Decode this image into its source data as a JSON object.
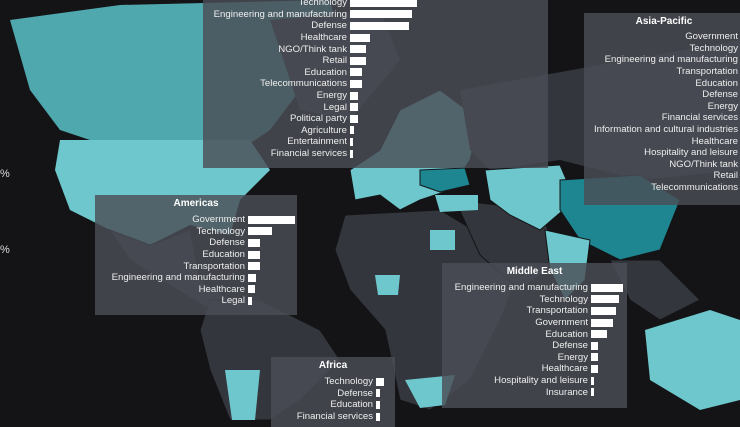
{
  "colors": {
    "background": "#141416",
    "land": "#33363c",
    "accent_light": "#6ec7cc",
    "accent_mid": "#4fa8ae",
    "accent_dark": "#1d8690",
    "panel": "#4a4e56",
    "bar": "#ffffff"
  },
  "edge_labels": [
    "%",
    "%"
  ],
  "regions": [
    {
      "id": "europe",
      "title": "",
      "items": [
        {
          "label": "Technology",
          "value": 67
        },
        {
          "label": "Engineering and manufacturing",
          "value": 62
        },
        {
          "label": "Defense",
          "value": 59
        },
        {
          "label": "Healthcare",
          "value": 20
        },
        {
          "label": "NGO/Think tank",
          "value": 16
        },
        {
          "label": "Retail",
          "value": 16
        },
        {
          "label": "Education",
          "value": 12
        },
        {
          "label": "Telecommunications",
          "value": 12
        },
        {
          "label": "Energy",
          "value": 8
        },
        {
          "label": "Legal",
          "value": 8
        },
        {
          "label": "Political party",
          "value": 8
        },
        {
          "label": "Agriculture",
          "value": 4
        },
        {
          "label": "Entertainment",
          "value": 3
        },
        {
          "label": "Financial services",
          "value": 3
        }
      ]
    },
    {
      "id": "asia-pacific",
      "title": "Asia-Pacific",
      "items": [
        {
          "label": "Government"
        },
        {
          "label": "Technology"
        },
        {
          "label": "Engineering and manufacturing"
        },
        {
          "label": "Transportation"
        },
        {
          "label": "Education"
        },
        {
          "label": "Defense"
        },
        {
          "label": "Energy"
        },
        {
          "label": "Financial services"
        },
        {
          "label": "Information and cultural industries"
        },
        {
          "label": "Healthcare"
        },
        {
          "label": "Hospitality and leisure"
        },
        {
          "label": "NGO/Think tank"
        },
        {
          "label": "Retail"
        },
        {
          "label": "Telecommunications"
        }
      ]
    },
    {
      "id": "americas",
      "title": "Americas",
      "items": [
        {
          "label": "Government",
          "value": 47
        },
        {
          "label": "Technology",
          "value": 24
        },
        {
          "label": "Defense",
          "value": 12
        },
        {
          "label": "Education",
          "value": 12
        },
        {
          "label": "Transportation",
          "value": 12
        },
        {
          "label": "Engineering and manufacturing",
          "value": 8
        },
        {
          "label": "Healthcare",
          "value": 7
        },
        {
          "label": "Legal",
          "value": 4
        }
      ]
    },
    {
      "id": "middle-east",
      "title": "Middle East",
      "items": [
        {
          "label": "Engineering and manufacturing",
          "value": 32
        },
        {
          "label": "Technology",
          "value": 28
        },
        {
          "label": "Transportation",
          "value": 25
        },
        {
          "label": "Government",
          "value": 22
        },
        {
          "label": "Education",
          "value": 16
        },
        {
          "label": "Defense",
          "value": 7
        },
        {
          "label": "Energy",
          "value": 7
        },
        {
          "label": "Healthcare",
          "value": 7
        },
        {
          "label": "Hospitality and leisure",
          "value": 3
        },
        {
          "label": "Insurance",
          "value": 3
        }
      ]
    },
    {
      "id": "africa",
      "title": "Africa",
      "items": [
        {
          "label": "Technology",
          "value": 8
        },
        {
          "label": "Defense",
          "value": 4
        },
        {
          "label": "Education",
          "value": 4
        },
        {
          "label": "Financial services",
          "value": 4
        }
      ]
    }
  ]
}
